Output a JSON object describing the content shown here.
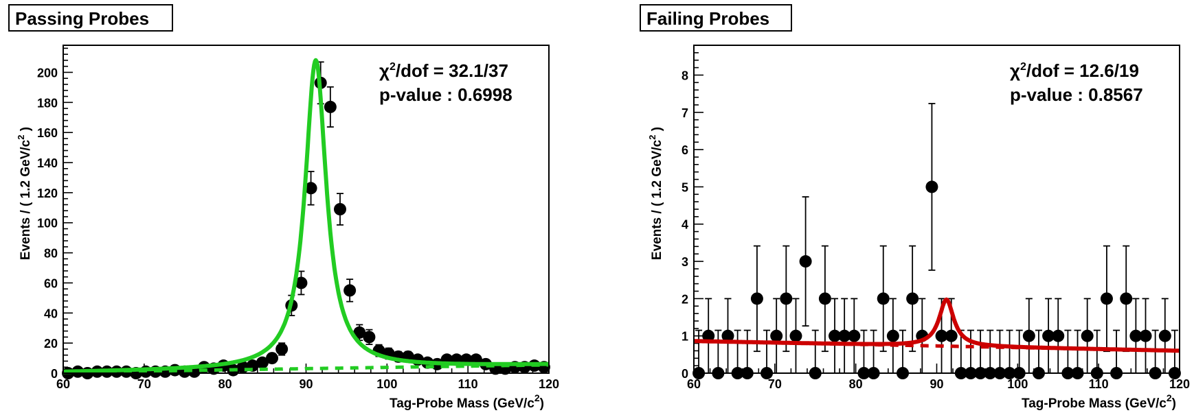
{
  "chart_data": [
    {
      "type": "scatter",
      "title": "Passing Probes",
      "xlabel": "Tag-Probe Mass (GeV/c",
      "xlabel_sup": "2",
      "xlabel_close": ")",
      "ylabel": "Events / ( 1.2 GeV/c",
      "ylabel_sup": "2",
      "ylabel_close": " )",
      "xlim": [
        60,
        120
      ],
      "ylim": [
        0,
        218
      ],
      "x_ticks": [
        60,
        70,
        80,
        90,
        100,
        110,
        120
      ],
      "y_ticks": [
        0,
        20,
        40,
        60,
        80,
        100,
        120,
        140,
        160,
        180,
        200
      ],
      "stats": {
        "chi_label": "χ",
        "chi_sup": "2",
        "chi_rest": "/dof = 32.1/37",
        "pvalue": "p-value : 0.6998"
      },
      "fit_color": "#22cc22",
      "fit_model": {
        "peak": 205,
        "mean": 91.2,
        "gamma": 3.2,
        "bkg0": 0.5,
        "bkg1": 5.5
      },
      "series": [
        {
          "x": [
            60.6,
            61.8,
            63.0,
            64.2,
            65.4,
            66.6,
            67.8,
            69.0,
            70.2,
            71.4,
            72.6,
            73.8,
            75.0,
            76.2,
            77.4,
            78.6,
            79.8,
            81.0,
            82.2,
            83.4,
            84.6,
            85.8,
            87.0,
            88.2,
            89.4,
            90.6,
            91.8,
            93.0,
            94.2,
            95.4,
            96.6,
            97.8,
            99.0,
            100.2,
            101.4,
            102.6,
            103.8,
            105.0,
            106.2,
            107.4,
            108.6,
            109.8,
            111.0,
            112.2,
            113.4,
            114.6,
            115.8,
            117.0,
            118.2,
            119.4
          ],
          "y": [
            0,
            1,
            0,
            1,
            1,
            1,
            1,
            0,
            1,
            1,
            1,
            2,
            1,
            1,
            4,
            3,
            5,
            2,
            4,
            5,
            7,
            10,
            16,
            45,
            60,
            123,
            193,
            177,
            109,
            55,
            27,
            24,
            15,
            13,
            11,
            11,
            9,
            7,
            6,
            9,
            9,
            9,
            9,
            6,
            3,
            3,
            4,
            4,
            5,
            4
          ]
        }
      ]
    },
    {
      "type": "scatter",
      "title": "Failing Probes",
      "xlabel": "Tag-Probe Mass (GeV/c",
      "xlabel_sup": "2",
      "xlabel_close": ")",
      "ylabel": "Events / ( 1.2 GeV/c",
      "ylabel_sup": "2",
      "ylabel_close": " )",
      "xlim": [
        60,
        120
      ],
      "ylim": [
        0,
        8.8
      ],
      "x_ticks": [
        60,
        70,
        80,
        90,
        100,
        110,
        120
      ],
      "y_ticks": [
        0,
        1,
        2,
        3,
        4,
        5,
        6,
        7,
        8
      ],
      "stats": {
        "chi_label": "χ",
        "chi_sup": "2",
        "chi_rest": "/dof = 12.6/19",
        "pvalue": "p-value : 0.8567"
      },
      "fit_color": "#cc0000",
      "fit_model": {
        "peak": 1.25,
        "mean": 91.2,
        "gamma": 2.2,
        "bkg0": 0.86,
        "bkg1": 0.6
      },
      "series": [
        {
          "x": [
            60.6,
            61.8,
            63.0,
            64.2,
            65.4,
            66.6,
            67.8,
            69.0,
            70.2,
            71.4,
            72.6,
            73.8,
            75.0,
            76.2,
            77.4,
            78.6,
            79.8,
            81.0,
            82.2,
            83.4,
            84.6,
            85.8,
            87.0,
            88.2,
            89.4,
            90.6,
            91.8,
            93.0,
            94.2,
            95.4,
            96.6,
            97.8,
            99.0,
            100.2,
            101.4,
            102.6,
            103.8,
            105.0,
            106.2,
            107.4,
            108.6,
            109.8,
            111.0,
            112.2,
            113.4,
            114.6,
            115.8,
            117.0,
            118.2,
            119.4
          ],
          "y": [
            0,
            1,
            0,
            1,
            0,
            0,
            2,
            0,
            1,
            2,
            1,
            3,
            0,
            2,
            1,
            1,
            1,
            0,
            0,
            2,
            1,
            0,
            2,
            1,
            5,
            1,
            1,
            0,
            0,
            0,
            0,
            0,
            0,
            0,
            1,
            0,
            1,
            1,
            0,
            0,
            1,
            0,
            2,
            0,
            2,
            1,
            1,
            0,
            1,
            0
          ]
        }
      ]
    }
  ]
}
